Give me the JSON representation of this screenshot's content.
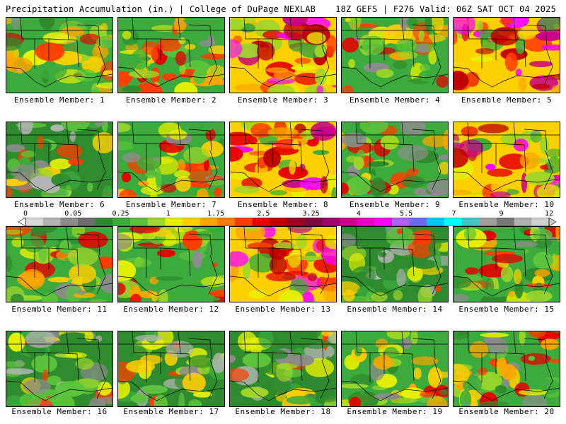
{
  "header": {
    "left": "Precipitation Accumulation (in.) | College of DuPage NEXLAB",
    "right": "18Z GEFS | F276 Valid: 06Z SAT OCT 04 2025"
  },
  "member_label_prefix": "Ensemble Member: ",
  "members": [
    {
      "id": 1,
      "label": "1",
      "dominant": "mixed"
    },
    {
      "id": 2,
      "label": "2",
      "dominant": "mixed"
    },
    {
      "id": 3,
      "label": "3",
      "dominant": "wet"
    },
    {
      "id": 4,
      "label": "4",
      "dominant": "mixed"
    },
    {
      "id": 5,
      "label": "5",
      "dominant": "wet"
    },
    {
      "id": 6,
      "label": "6",
      "dominant": "dry"
    },
    {
      "id": 7,
      "label": "7",
      "dominant": "mixed"
    },
    {
      "id": 8,
      "label": "8",
      "dominant": "wet"
    },
    {
      "id": 9,
      "label": "9",
      "dominant": "mixed"
    },
    {
      "id": 10,
      "label": "10",
      "dominant": "wet"
    },
    {
      "id": 11,
      "label": "11",
      "dominant": "mixed"
    },
    {
      "id": 12,
      "label": "12",
      "dominant": "mixed"
    },
    {
      "id": 13,
      "label": "13",
      "dominant": "wet"
    },
    {
      "id": 14,
      "label": "14",
      "dominant": "dry"
    },
    {
      "id": 15,
      "label": "15",
      "dominant": "mixed"
    },
    {
      "id": 16,
      "label": "16",
      "dominant": "dry"
    },
    {
      "id": 17,
      "label": "17",
      "dominant": "dry"
    },
    {
      "id": 18,
      "label": "18",
      "dominant": "dry"
    },
    {
      "id": 19,
      "label": "19",
      "dominant": "mixed"
    },
    {
      "id": 20,
      "label": "20",
      "dominant": "mixed"
    }
  ],
  "colorbar": {
    "tick_labels": [
      "0",
      "0.05",
      "0.25",
      "1",
      "1.75",
      "2.5",
      "3.25",
      "4",
      "5.5",
      "7",
      "9",
      "12"
    ],
    "colors": [
      "#d8d8d8",
      "#b4b4b4",
      "#8c8c8c",
      "#6e6e6e",
      "#2e8b2e",
      "#3caa3c",
      "#5cc43c",
      "#9fd62a",
      "#e6f000",
      "#ffd000",
      "#ffa500",
      "#ff7a00",
      "#ff3c00",
      "#e60000",
      "#c00000",
      "#a00020",
      "#800040",
      "#a0006e",
      "#c8008c",
      "#e600c8",
      "#ff00ff",
      "#b060ff",
      "#6a6aff",
      "#00c8ff",
      "#00ffff",
      "#40c8c8",
      "#a0a0a0",
      "#787878",
      "#b0b0b0",
      "#d0d0d0"
    ]
  }
}
